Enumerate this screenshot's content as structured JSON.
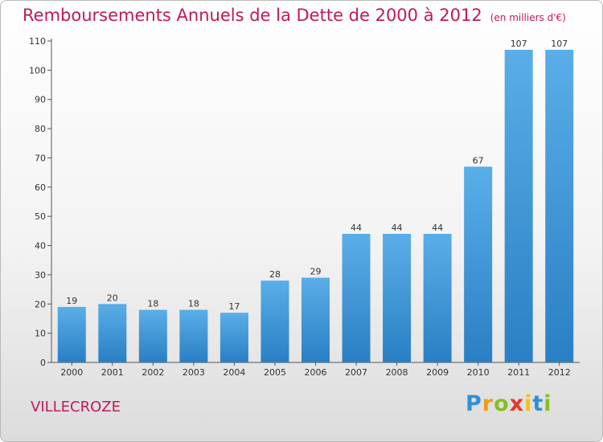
{
  "header": {
    "title": "Remboursements Annuels de la Dette de 2000 à 2012",
    "unit": "(en milliers d'€)"
  },
  "footer": {
    "town": "VILLECROZE",
    "logo_letters": [
      "P",
      "r",
      "o",
      "x",
      "i",
      "t",
      "i"
    ]
  },
  "colors": {
    "title": "#c2185b",
    "bar_top": "#5aaee8",
    "bar_bottom": "#2a7fc4"
  },
  "chart_data": {
    "type": "bar",
    "title": "Remboursements Annuels de la Dette de 2000 à 2012",
    "xlabel": "",
    "ylabel": "",
    "categories": [
      "2000",
      "2001",
      "2002",
      "2003",
      "2004",
      "2005",
      "2006",
      "2007",
      "2008",
      "2009",
      "2010",
      "2011",
      "2012"
    ],
    "values": [
      19,
      20,
      18,
      18,
      17,
      28,
      29,
      44,
      44,
      44,
      67,
      107,
      107
    ],
    "ylim": [
      0,
      110
    ],
    "yticks": [
      0,
      10,
      20,
      30,
      40,
      50,
      60,
      70,
      80,
      90,
      100,
      110
    ],
    "grid": false,
    "legend": "none"
  }
}
